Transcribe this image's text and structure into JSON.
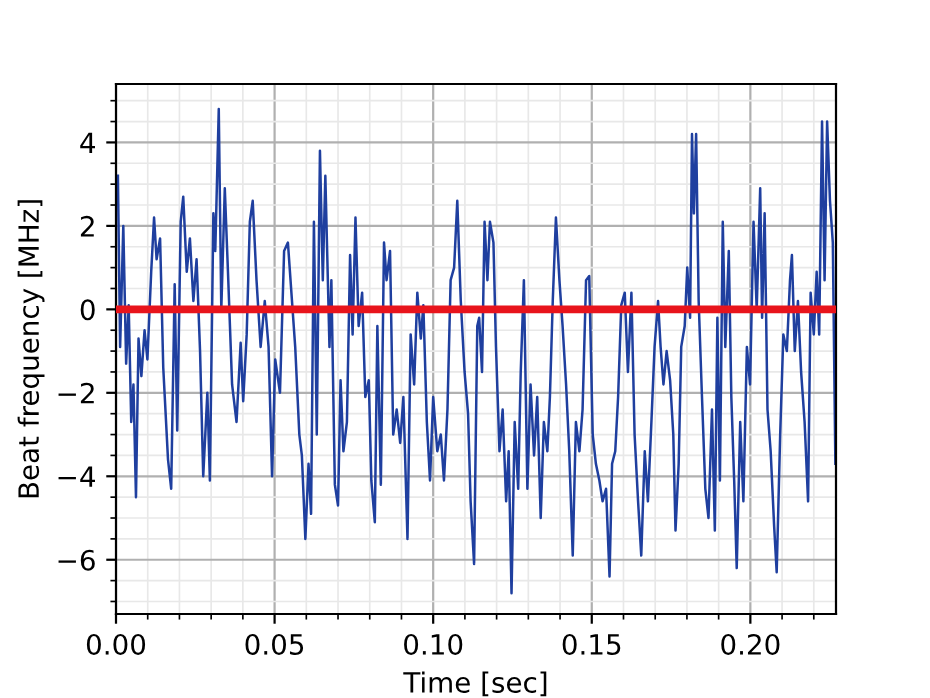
{
  "chart_data": {
    "type": "line",
    "xlabel": "Time [sec]",
    "ylabel": "Beat frequency [MHz]",
    "xlim": [
      0,
      0.227
    ],
    "ylim": [
      -7.3,
      5.4
    ],
    "xticks": [
      {
        "value": 0,
        "label": "0.00"
      },
      {
        "value": 0.01,
        "label": null
      },
      {
        "value": 0.02,
        "label": null
      },
      {
        "value": 0.03,
        "label": null
      },
      {
        "value": 0.04,
        "label": null
      },
      {
        "value": 0.05,
        "label": "0.05"
      },
      {
        "value": 0.06,
        "label": null
      },
      {
        "value": 0.07,
        "label": null
      },
      {
        "value": 0.08,
        "label": null
      },
      {
        "value": 0.09,
        "label": null
      },
      {
        "value": 0.1,
        "label": "0.10"
      },
      {
        "value": 0.11,
        "label": null
      },
      {
        "value": 0.12,
        "label": null
      },
      {
        "value": 0.13,
        "label": null
      },
      {
        "value": 0.14,
        "label": null
      },
      {
        "value": 0.15,
        "label": "0.15"
      },
      {
        "value": 0.16,
        "label": null
      },
      {
        "value": 0.17,
        "label": null
      },
      {
        "value": 0.18,
        "label": null
      },
      {
        "value": 0.19,
        "label": null
      },
      {
        "value": 0.2,
        "label": "0.20"
      },
      {
        "value": 0.21,
        "label": null
      },
      {
        "value": 0.22,
        "label": null
      }
    ],
    "yticks": [
      {
        "value": -7,
        "label": null
      },
      {
        "value": -6.5,
        "label": null
      },
      {
        "value": -6,
        "label": "−6"
      },
      {
        "value": -5.5,
        "label": null
      },
      {
        "value": -5,
        "label": null
      },
      {
        "value": -4.5,
        "label": null
      },
      {
        "value": -4,
        "label": "−4"
      },
      {
        "value": -3.5,
        "label": null
      },
      {
        "value": -3,
        "label": null
      },
      {
        "value": -2.5,
        "label": null
      },
      {
        "value": -2,
        "label": "−2"
      },
      {
        "value": -1.5,
        "label": null
      },
      {
        "value": -1,
        "label": null
      },
      {
        "value": -0.5,
        "label": null
      },
      0,
      {
        "value": 0.5,
        "label": null
      },
      {
        "value": 1,
        "label": null
      },
      {
        "value": 1.5,
        "label": null
      },
      2,
      {
        "value": 2.5,
        "label": null
      },
      {
        "value": 3,
        "label": null
      },
      {
        "value": 3.5,
        "label": null
      },
      4,
      {
        "value": 4.5,
        "label": null
      },
      {
        "value": 5,
        "label": null
      }
    ],
    "grid": true,
    "line_style": "solid",
    "marker": "none",
    "series": [
      {
        "color": "#1f3f9f",
        "x": [
          0.0006,
          0.0013,
          0.0023,
          0.0032,
          0.004,
          0.0048,
          0.0055,
          0.0063,
          0.0071,
          0.008,
          0.009,
          0.0099,
          0.0111,
          0.012,
          0.0128,
          0.0139,
          0.0149,
          0.0164,
          0.0174,
          0.0185,
          0.0193,
          0.0204,
          0.0212,
          0.0223,
          0.0233,
          0.0244,
          0.0254,
          0.0265,
          0.0275,
          0.0288,
          0.0296,
          0.0307,
          0.0313,
          0.0324,
          0.0332,
          0.0343,
          0.0353,
          0.0366,
          0.038,
          0.0393,
          0.0401,
          0.0412,
          0.0422,
          0.0431,
          0.0443,
          0.0456,
          0.0469,
          0.0481,
          0.0492,
          0.0502,
          0.0517,
          0.053,
          0.0542,
          0.0553,
          0.0565,
          0.0578,
          0.0586,
          0.0597,
          0.0607,
          0.0615,
          0.0624,
          0.0633,
          0.0643,
          0.0652,
          0.066,
          0.0673,
          0.0679,
          0.069,
          0.07,
          0.0708,
          0.0717,
          0.0728,
          0.0738,
          0.0746,
          0.0755,
          0.0765,
          0.0776,
          0.0786,
          0.0797,
          0.0805,
          0.0816,
          0.0824,
          0.0835,
          0.0845,
          0.0853,
          0.0864,
          0.0874,
          0.0885,
          0.0896,
          0.0906,
          0.0919,
          0.0929,
          0.094,
          0.095,
          0.0961,
          0.0969,
          0.098,
          0.099,
          0.1,
          0.1013,
          0.1024,
          0.1034,
          0.1045,
          0.1055,
          0.1066,
          0.1076,
          0.1087,
          0.1099,
          0.111,
          0.1118,
          0.1129,
          0.1139,
          0.1145,
          0.1154,
          0.1162,
          0.1171,
          0.1179,
          0.119,
          0.1198,
          0.1209,
          0.1219,
          0.123,
          0.1238,
          0.1247,
          0.1257,
          0.1268,
          0.1276,
          0.1286,
          0.1297,
          0.1307,
          0.1318,
          0.1328,
          0.1339,
          0.1349,
          0.136,
          0.1368,
          0.1377,
          0.1387,
          0.1398,
          0.1408,
          0.1419,
          0.1429,
          0.144,
          0.145,
          0.1461,
          0.1471,
          0.1482,
          0.1492,
          0.1503,
          0.1513,
          0.1524,
          0.1534,
          0.1545,
          0.1556,
          0.1564,
          0.1574,
          0.1583,
          0.1593,
          0.1604,
          0.1614,
          0.1625,
          0.1635,
          0.1646,
          0.1656,
          0.1667,
          0.1677,
          0.1688,
          0.1698,
          0.1709,
          0.1717,
          0.1726,
          0.1736,
          0.1747,
          0.1757,
          0.1764,
          0.1774,
          0.1782,
          0.1793,
          0.1801,
          0.181,
          0.1816,
          0.1822,
          0.1829,
          0.1837,
          0.1847,
          0.1858,
          0.1868,
          0.1879,
          0.1888,
          0.1896,
          0.1904,
          0.1913,
          0.1921,
          0.1932,
          0.194,
          0.1949,
          0.1957,
          0.1968,
          0.1978,
          0.1989,
          0.1999,
          0.201,
          0.202,
          0.2031,
          0.2037,
          0.2045,
          0.2054,
          0.2064,
          0.2075,
          0.2083,
          0.2094,
          0.2104,
          0.2115,
          0.2125,
          0.2131,
          0.214,
          0.215,
          0.216,
          0.2171,
          0.2182,
          0.219,
          0.22,
          0.2209,
          0.2217,
          0.2226,
          0.2234,
          0.2242,
          0.2251,
          0.226,
          0.2268
        ],
        "values": [
          3.2,
          -0.9,
          2.0,
          -1.3,
          0.1,
          -2.7,
          -1.8,
          -4.5,
          -0.7,
          -1.6,
          -0.5,
          -1.2,
          0.9,
          2.2,
          1.2,
          1.7,
          -1.4,
          -3.6,
          -4.3,
          0.6,
          -2.9,
          2.1,
          2.7,
          0.9,
          1.7,
          0.2,
          1.2,
          -1.0,
          -4.0,
          -2.0,
          -4.1,
          2.3,
          1.4,
          4.8,
          0.0,
          2.9,
          0.9,
          -1.8,
          -2.7,
          -0.8,
          -2.2,
          -0.6,
          2.1,
          2.6,
          0.7,
          -0.9,
          0.2,
          -0.9,
          -4.0,
          -1.2,
          -2.0,
          1.4,
          1.6,
          0.4,
          -0.9,
          -3.0,
          -3.5,
          -5.5,
          -3.7,
          -4.9,
          2.1,
          -3.0,
          3.8,
          0.7,
          3.2,
          -0.9,
          0.7,
          -4.2,
          -4.7,
          -1.7,
          -3.4,
          -2.7,
          1.3,
          -0.6,
          2.2,
          -0.4,
          0.4,
          -2.1,
          -1.7,
          -4.1,
          -5.1,
          -0.4,
          -4.2,
          1.6,
          0.7,
          1.4,
          -3.0,
          -2.4,
          -3.2,
          -2.1,
          -5.5,
          -0.6,
          -1.8,
          0.4,
          -0.7,
          0.1,
          -2.7,
          -4.1,
          -2.1,
          -3.4,
          -3.0,
          -4.1,
          -2.4,
          0.7,
          1.0,
          2.6,
          0.2,
          -1.5,
          -2.5,
          -4.6,
          -6.1,
          -0.4,
          -0.2,
          -1.5,
          2.1,
          0.7,
          2.1,
          1.6,
          -0.9,
          -3.4,
          -2.4,
          -4.6,
          -3.4,
          -6.8,
          -2.7,
          -4.3,
          -1.5,
          0.7,
          -4.3,
          -1.8,
          -3.5,
          -2.1,
          -5.0,
          -2.7,
          -3.4,
          -2.1,
          0.2,
          2.2,
          0.7,
          -0.4,
          -1.8,
          -3.4,
          -5.9,
          -2.7,
          -3.4,
          -2.4,
          0.7,
          0.8,
          -3.0,
          -3.7,
          -4.1,
          -4.6,
          -4.3,
          -6.4,
          -3.7,
          -3.4,
          -2.1,
          0.1,
          0.4,
          -1.5,
          0.4,
          -3.0,
          -4.6,
          -5.9,
          -3.4,
          -4.6,
          -2.7,
          -0.9,
          0.2,
          -0.9,
          -1.8,
          -1.0,
          -1.7,
          -3.0,
          -5.3,
          -3.7,
          -0.9,
          -0.4,
          1.0,
          -0.2,
          4.2,
          2.3,
          4.2,
          0.2,
          -2.0,
          -4.3,
          -5.0,
          -2.4,
          -5.3,
          -0.2,
          -4.1,
          2.1,
          -0.9,
          1.4,
          -2.1,
          -4.1,
          -6.2,
          -2.7,
          -4.6,
          -0.9,
          -1.8,
          2.1,
          0.0,
          2.9,
          -0.2,
          2.3,
          -2.4,
          -3.4,
          -5.2,
          -6.3,
          -3.0,
          -0.6,
          -1.0,
          0.7,
          1.3,
          -1.0,
          0.2,
          -1.5,
          -2.7,
          -4.6,
          0.4,
          -0.6,
          0.9,
          -0.6,
          4.5,
          0.7,
          4.5,
          2.6,
          1.6,
          -3.7
        ]
      },
      {
        "color": "#e8141c",
        "x": [
          0,
          0.227
        ],
        "values": [
          0,
          0
        ]
      }
    ]
  }
}
